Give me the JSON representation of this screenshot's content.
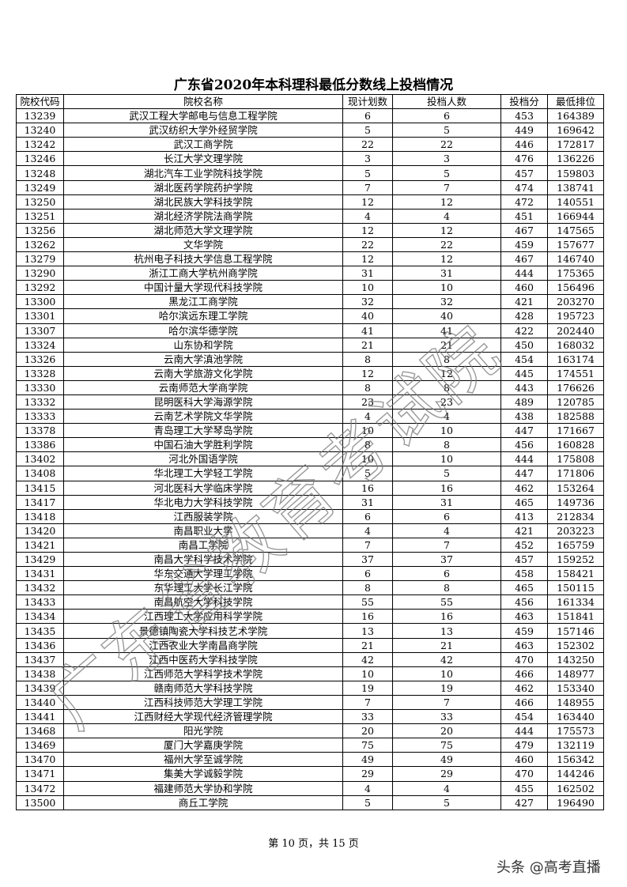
{
  "header": {
    "title": "广东省2020年本科理科最低分数线上投档情况"
  },
  "table": {
    "columns": [
      "院校代码",
      "院校名称",
      "现计划数",
      "投档人数",
      "投档分",
      "最低排位"
    ],
    "rows": [
      [
        "13239",
        "武汉工程大学邮电与信息工程学院",
        6,
        6,
        453,
        164389
      ],
      [
        "13240",
        "武汉纺织大学外经贸学院",
        5,
        5,
        449,
        169642
      ],
      [
        "13242",
        "武汉工商学院",
        22,
        22,
        446,
        172817
      ],
      [
        "13246",
        "长江大学文理学院",
        3,
        3,
        476,
        136226
      ],
      [
        "13248",
        "湖北汽车工业学院科技学院",
        5,
        5,
        457,
        159803
      ],
      [
        "13249",
        "湖北医药学院药护学院",
        7,
        7,
        474,
        138741
      ],
      [
        "13250",
        "湖北民族大学科技学院",
        12,
        12,
        472,
        140551
      ],
      [
        "13251",
        "湖北经济学院法商学院",
        4,
        4,
        451,
        166944
      ],
      [
        "13256",
        "湖北师范大学文理学院",
        12,
        12,
        467,
        147565
      ],
      [
        "13262",
        "文华学院",
        22,
        22,
        459,
        157677
      ],
      [
        "13279",
        "杭州电子科技大学信息工程学院",
        12,
        12,
        467,
        146740
      ],
      [
        "13290",
        "浙江工商大学杭州商学院",
        31,
        31,
        444,
        175365
      ],
      [
        "13292",
        "中国计量大学现代科技学院",
        10,
        10,
        460,
        156496
      ],
      [
        "13300",
        "黑龙江工商学院",
        32,
        32,
        421,
        203270
      ],
      [
        "13301",
        "哈尔滨远东理工学院",
        40,
        40,
        428,
        195723
      ],
      [
        "13307",
        "哈尔滨华德学院",
        41,
        41,
        422,
        202440
      ],
      [
        "13324",
        "山东协和学院",
        21,
        21,
        450,
        168032
      ],
      [
        "13326",
        "云南大学滇池学院",
        8,
        8,
        454,
        163174
      ],
      [
        "13328",
        "云南大学旅游文化学院",
        12,
        12,
        445,
        174551
      ],
      [
        "13330",
        "云南师范大学商学院",
        8,
        8,
        443,
        176626
      ],
      [
        "13332",
        "昆明医科大学海源学院",
        23,
        23,
        489,
        120785
      ],
      [
        "13333",
        "云南艺术学院文华学院",
        4,
        4,
        438,
        182588
      ],
      [
        "13378",
        "青岛理工大学琴岛学院",
        10,
        10,
        447,
        171667
      ],
      [
        "13386",
        "中国石油大学胜利学院",
        8,
        8,
        456,
        160828
      ],
      [
        "13402",
        "河北外国语学院",
        10,
        10,
        444,
        175808
      ],
      [
        "13408",
        "华北理工大学轻工学院",
        5,
        5,
        447,
        171806
      ],
      [
        "13415",
        "河北医科大学临床学院",
        16,
        16,
        462,
        153264
      ],
      [
        "13417",
        "华北电力大学科技学院",
        31,
        31,
        465,
        149736
      ],
      [
        "13418",
        "江西服装学院",
        6,
        6,
        413,
        212834
      ],
      [
        "13420",
        "南昌职业大学",
        4,
        4,
        421,
        203223
      ],
      [
        "13421",
        "南昌工学院",
        7,
        7,
        452,
        165759
      ],
      [
        "13429",
        "南昌大学科学技术学院",
        37,
        37,
        457,
        159252
      ],
      [
        "13431",
        "华东交通大学理工学院",
        6,
        6,
        458,
        158421
      ],
      [
        "13432",
        "东华理工大学长江学院",
        8,
        8,
        465,
        150115
      ],
      [
        "13433",
        "南昌航空大学科技学院",
        55,
        55,
        456,
        161334
      ],
      [
        "13434",
        "江西理工大学应用科学学院",
        16,
        16,
        463,
        151841
      ],
      [
        "13435",
        "景德镇陶瓷大学科技艺术学院",
        13,
        13,
        459,
        157146
      ],
      [
        "13436",
        "江西农业大学南昌商学院",
        21,
        21,
        463,
        152302
      ],
      [
        "13437",
        "江西中医药大学科技学院",
        42,
        42,
        470,
        143250
      ],
      [
        "13438",
        "江西师范大学科学技术学院",
        10,
        10,
        466,
        148977
      ],
      [
        "13439",
        "赣南师范大学科技学院",
        19,
        19,
        462,
        153340
      ],
      [
        "13440",
        "江西科技师范大学理工学院",
        7,
        7,
        466,
        148955
      ],
      [
        "13441",
        "江西财经大学现代经济管理学院",
        33,
        33,
        454,
        163440
      ],
      [
        "13468",
        "阳光学院",
        20,
        20,
        444,
        175573
      ],
      [
        "13469",
        "厦门大学嘉庚学院",
        75,
        75,
        479,
        132119
      ],
      [
        "13470",
        "福州大学至诚学院",
        49,
        49,
        460,
        156342
      ],
      [
        "13471",
        "集美大学诚毅学院",
        29,
        29,
        470,
        144246
      ],
      [
        "13472",
        "福建师范大学协和学院",
        4,
        4,
        455,
        162502
      ],
      [
        "13500",
        "商丘工学院",
        5,
        5,
        427,
        196490
      ]
    ]
  },
  "footer": {
    "page": "第 10 页，共 15 页"
  },
  "watermark": {
    "text": "广东省教育考试院",
    "source": "头条 @高考直播"
  }
}
